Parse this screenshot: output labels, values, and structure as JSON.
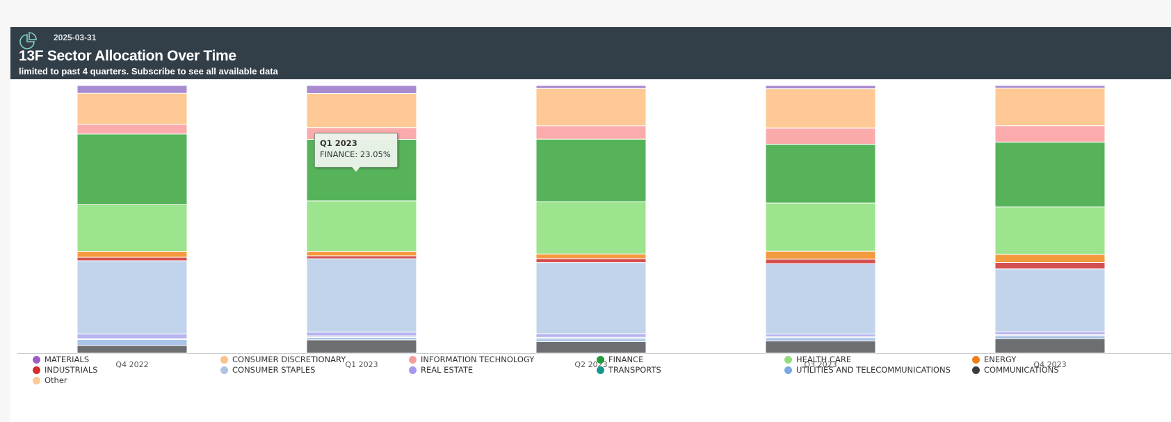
{
  "header": {
    "date": "2025-03-31",
    "title": "13F Sector Allocation Over Time",
    "subtitle": "limited to past 4 quarters. Subscribe to see all available data"
  },
  "tooltip": {
    "quarter": "Q1 2023",
    "text": "FINANCE: 23.05%"
  },
  "chart_data": {
    "type": "bar",
    "stacked": true,
    "categories": [
      "Q4 2022",
      "Q1 2023",
      "Q2 2023",
      "Q3 2023",
      "Q4 2023"
    ],
    "ylim": [
      0,
      100
    ],
    "legend_position": "bottom",
    "series": [
      {
        "name": "COMMUNICATIONS",
        "color": "#6d6e72",
        "values": [
          2.9,
          5.0,
          4.3,
          4.6,
          5.4
        ]
      },
      {
        "name": "UTILITIES AND TELECOMMUNICATIONS",
        "color": "#a9c4e8",
        "values": [
          2.2,
          0.9,
          1.0,
          1.2,
          1.1
        ]
      },
      {
        "name": "TRANSPORTS",
        "color": "#c8d4ea",
        "values": [
          0.3,
          0.6,
          0.6,
          0.4,
          0.4
        ]
      },
      {
        "name": "REAL ESTATE",
        "color": "#b7b4f0",
        "values": [
          1.8,
          1.4,
          1.4,
          1.0,
          1.1
        ]
      },
      {
        "name": "CONSUMER STAPLES",
        "color": "#c1d4ec",
        "values": [
          27.3,
          27.5,
          26.5,
          26.3,
          23.3
        ]
      },
      {
        "name": "INDUSTRIALS",
        "color": "#d45050",
        "values": [
          1.3,
          1.1,
          1.5,
          1.7,
          2.4
        ]
      },
      {
        "name": "ENERGY",
        "color": "#f49a3e",
        "values": [
          2.2,
          1.7,
          1.7,
          3.0,
          3.0
        ]
      },
      {
        "name": "HEALTH CARE",
        "color": "#9ce48e",
        "values": [
          17.4,
          18.9,
          19.5,
          18.0,
          17.6
        ]
      },
      {
        "name": "FINANCE",
        "color": "#56b35a",
        "values": [
          26.4,
          23.05,
          23.3,
          22.0,
          24.1
        ]
      },
      {
        "name": "INFORMATION TECHNOLOGY",
        "color": "#fbabab",
        "values": [
          3.6,
          4.4,
          5.0,
          6.1,
          6.1
        ]
      },
      {
        "name": "Other",
        "color": "#fec994",
        "values": [
          11.6,
          12.8,
          13.9,
          14.7,
          13.9
        ]
      },
      {
        "name": "MATERIALS",
        "color": "#a88bd0",
        "values": [
          2.9,
          3.0,
          1.1,
          1.2,
          1.0
        ]
      }
    ]
  },
  "legend": [
    {
      "label": "MATERIALS",
      "color": "#9c5fc7"
    },
    {
      "label": "CONSUMER DISCRETIONARY",
      "color": "#fdc28a"
    },
    {
      "label": "INFORMATION TECHNOLOGY",
      "color": "#f59ea0"
    },
    {
      "label": "FINANCE",
      "color": "#239b3a"
    },
    {
      "label": "HEALTH CARE",
      "color": "#94dc80"
    },
    {
      "label": "ENERGY",
      "color": "#f07f18"
    },
    {
      "label": "INDUSTRIALS",
      "color": "#d62e2e"
    },
    {
      "label": "CONSUMER STAPLES",
      "color": "#adc4e2"
    },
    {
      "label": "REAL ESTATE",
      "color": "#a39af0"
    },
    {
      "label": "TRANSPORTS",
      "color": "#16968c"
    },
    {
      "label": "UTILITIES AND TELECOMMUNICATIONS",
      "color": "#7aa8e0"
    },
    {
      "label": "COMMUNICATIONS",
      "color": "#3c3c3c"
    },
    {
      "label": "Other",
      "color": "#fdc893"
    }
  ]
}
